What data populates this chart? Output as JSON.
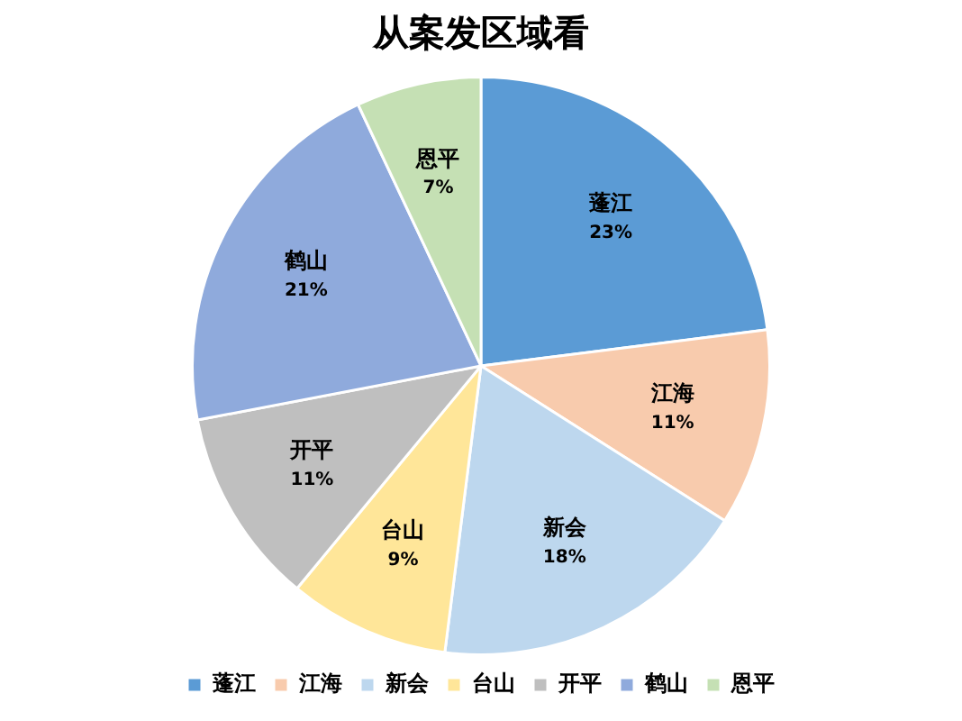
{
  "chart_data": {
    "type": "pie",
    "title": "从案发区域看",
    "categories": [
      "蓬江",
      "江海",
      "新会",
      "台山",
      "开平",
      "鹤山",
      "恩平"
    ],
    "values": [
      23,
      11,
      18,
      9,
      11,
      21,
      7
    ],
    "value_labels": [
      "23%",
      "11%",
      "18%",
      "9%",
      "11%",
      "21%",
      "7%"
    ],
    "colors": [
      "#5b9bd5",
      "#f8cbad",
      "#bdd7ee",
      "#ffe699",
      "#bfbfbf",
      "#8faadc",
      "#c5e0b4"
    ],
    "legend": "bottom"
  }
}
